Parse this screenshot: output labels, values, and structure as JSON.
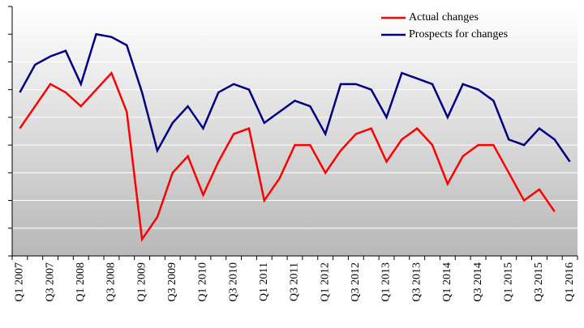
{
  "chart_data": {
    "type": "line",
    "categories": [
      "Q1 2007",
      null,
      "Q3 2007",
      null,
      "Q1 2008",
      null,
      "Q3 2008",
      null,
      "Q1 2009",
      null,
      "Q3 2009",
      null,
      "Q1 2010",
      null,
      "Q3 2010",
      null,
      "Q1 2011",
      null,
      "Q3 2011",
      null,
      "Q1 2012",
      null,
      "Q3 2012",
      null,
      "Q1 2013",
      null,
      "Q3 2013",
      null,
      "Q1 2014",
      null,
      "Q3 2014",
      null,
      "Q1 2015",
      null,
      "Q3 2015",
      null,
      "Q1 2016"
    ],
    "series": [
      {
        "name": "Actual changes",
        "color": "#ff0000",
        "values": [
          4.6,
          5.4,
          6.2,
          5.9,
          5.4,
          6.0,
          6.6,
          5.2,
          0.6,
          1.4,
          3.0,
          3.6,
          2.2,
          3.4,
          4.4,
          4.6,
          2.0,
          2.8,
          4.0,
          4.0,
          3.0,
          3.8,
          4.4,
          4.6,
          3.4,
          4.2,
          4.6,
          4.0,
          2.6,
          3.6,
          4.0,
          4.0,
          3.0,
          2.0,
          2.4,
          1.6,
          null
        ]
      },
      {
        "name": "Prospects for changes",
        "color": "#000080",
        "values": [
          5.9,
          6.9,
          7.2,
          7.4,
          6.2,
          8.0,
          7.9,
          7.6,
          5.9,
          3.8,
          4.8,
          5.4,
          4.6,
          5.9,
          6.2,
          6.0,
          4.8,
          5.2,
          5.6,
          5.4,
          4.4,
          6.2,
          6.2,
          6.0,
          5.0,
          6.6,
          6.4,
          6.2,
          5.0,
          6.2,
          6.0,
          5.6,
          4.2,
          4.0,
          4.6,
          4.2,
          3.4
        ]
      }
    ],
    "ylim": [
      0,
      9
    ],
    "yticks": [
      0,
      1,
      2,
      3,
      4,
      5,
      6,
      7,
      8,
      9
    ],
    "grid": true,
    "legend": "top-right"
  }
}
